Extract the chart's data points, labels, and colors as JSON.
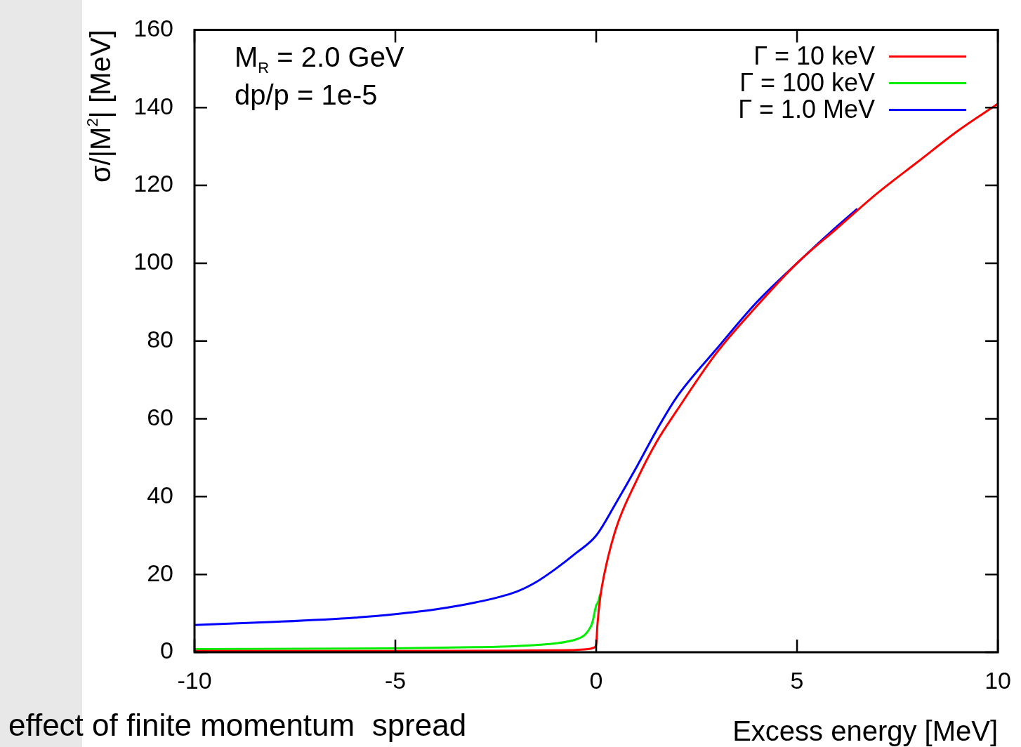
{
  "chart_data": {
    "type": "line",
    "xlabel": "Excess energy [MeV]",
    "ylabel": "σ/|M$^{2}$| [MeV]",
    "xlim": [
      -10,
      10
    ],
    "xticks": [
      -10,
      -5,
      0,
      5,
      10
    ],
    "ylim": [
      0,
      160
    ],
    "yticks": [
      0,
      20,
      40,
      60,
      80,
      100,
      120,
      140,
      160
    ],
    "grid": false,
    "legend": "top right",
    "marker": "none",
    "line_style": "solid",
    "annotations": [
      "M$_{R}$ = 2.0 GeV",
      "dp/p = 1e-5",
      "effect of finite momentum  spread"
    ],
    "series": [
      {
        "name": "Γ = 10 keV",
        "color": "#ff0000",
        "x": [
          -10,
          -5,
          -2,
          -1,
          -0.5,
          -0.2,
          -0.05,
          0,
          0.03,
          0.1,
          0.2,
          0.5,
          1,
          1.5,
          2,
          3,
          4,
          5,
          6,
          7,
          8,
          9,
          10
        ],
        "values": [
          0.3,
          0.3,
          0.4,
          0.5,
          0.6,
          0.8,
          1.2,
          2,
          7,
          14,
          20,
          32,
          44,
          54,
          62,
          77,
          89,
          100,
          109,
          118,
          126,
          134,
          141
        ]
      },
      {
        "name": "Γ = 100 keV",
        "color": "#00ee00",
        "x": [
          -10,
          -5,
          -3,
          -2,
          -1,
          -0.5,
          -0.3,
          -0.2,
          -0.1,
          0,
          0.05,
          0.1
        ],
        "values": [
          0.8,
          1,
          1.3,
          1.6,
          2.3,
          3.3,
          4.3,
          5.5,
          7.5,
          12,
          13,
          15
        ]
      },
      {
        "name": "Γ = 1.0 MeV",
        "color": "#0000ff",
        "x": [
          -10,
          -8,
          -6,
          -5,
          -4,
          -3,
          -2,
          -1.5,
          -1,
          -0.5,
          0,
          0.5,
          1,
          1.5,
          2,
          3,
          4,
          5,
          6,
          6.5
        ],
        "values": [
          7,
          7.8,
          8.9,
          9.8,
          11,
          12.8,
          15.5,
          18,
          21.5,
          25.5,
          30,
          38.5,
          47.5,
          57,
          65.5,
          78,
          90,
          100,
          109.5,
          114
        ]
      }
    ]
  }
}
